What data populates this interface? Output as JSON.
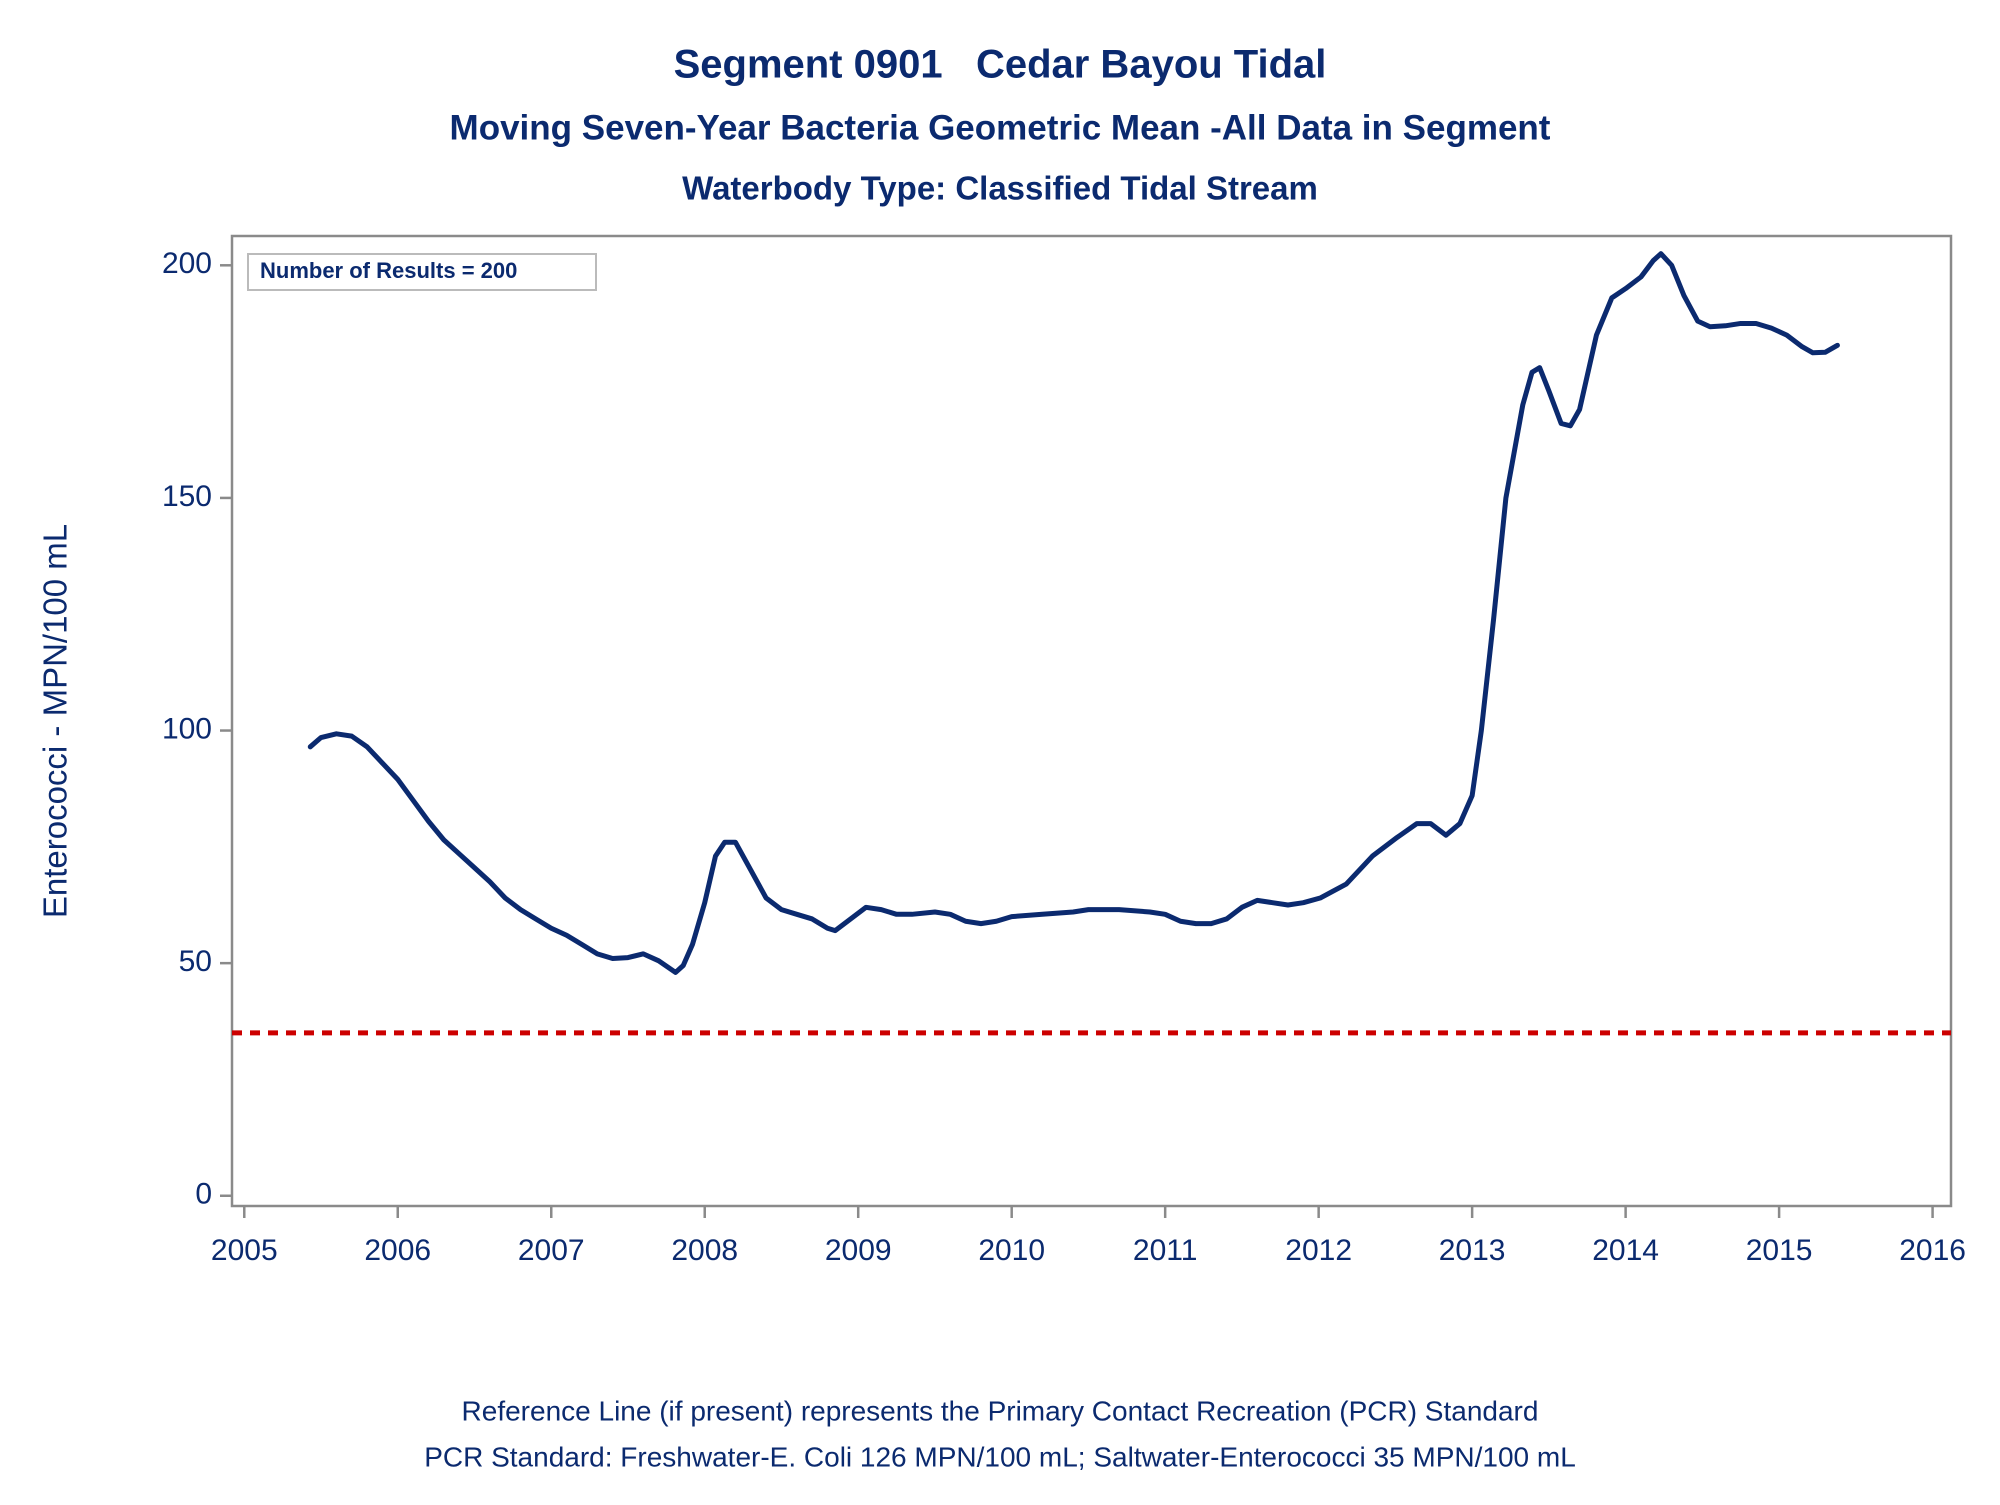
{
  "chart_data": {
    "type": "line",
    "title": "Segment 0901   Cedar Bayou Tidal",
    "subtitle": "Moving Seven-Year Bacteria Geometric Mean -All Data in Segment",
    "subtitle2": "Waterbody Type: Classified Tidal Stream",
    "y_label": "Enterococci - MPN/100 mL",
    "annotation": "Number of Results = 200",
    "notes": [
      "Reference Line (if present) represents the Primary Contact Recreation (PCR) Standard",
      "PCR Standard: Freshwater-E. Coli 126 MPN/100 mL; Saltwater-Enterococci 35 MPN/100 mL"
    ],
    "color": "#0b2a6f",
    "reference_line": {
      "value": 35,
      "color": "#cc0000"
    },
    "xlim": [
      2004.92,
      2016.12
    ],
    "ylim": [
      -2.2,
      206.3
    ],
    "xticks": [
      2005,
      2006,
      2007,
      2008,
      2009,
      2010,
      2011,
      2012,
      2013,
      2014,
      2015,
      2016
    ],
    "yticks": [
      0,
      50,
      100,
      150,
      200
    ],
    "x": [
      2005.43,
      2005.5,
      2005.6,
      2005.7,
      2005.8,
      2005.9,
      2006.0,
      2006.1,
      2006.2,
      2006.3,
      2006.4,
      2006.5,
      2006.6,
      2006.7,
      2006.8,
      2006.9,
      2007.0,
      2007.1,
      2007.2,
      2007.3,
      2007.4,
      2007.5,
      2007.6,
      2007.7,
      2007.81,
      2007.86,
      2007.92,
      2008.0,
      2008.07,
      2008.13,
      2008.2,
      2008.3,
      2008.4,
      2008.5,
      2008.6,
      2008.7,
      2008.8,
      2008.85,
      2008.95,
      2009.05,
      2009.15,
      2009.25,
      2009.35,
      2009.5,
      2009.6,
      2009.7,
      2009.8,
      2009.9,
      2010.0,
      2010.2,
      2010.4,
      2010.5,
      2010.7,
      2010.9,
      2011.0,
      2011.1,
      2011.2,
      2011.3,
      2011.4,
      2011.5,
      2011.6,
      2011.7,
      2011.8,
      2011.9,
      2012.01,
      2012.18,
      2012.35,
      2012.51,
      2012.64,
      2012.73,
      2012.83,
      2012.92,
      2013.0,
      2013.06,
      2013.14,
      2013.22,
      2013.33,
      2013.39,
      2013.44,
      2013.5,
      2013.58,
      2013.64,
      2013.7,
      2013.81,
      2013.91,
      2014.0,
      2014.1,
      2014.18,
      2014.23,
      2014.3,
      2014.38,
      2014.47,
      2014.55,
      2014.65,
      2014.75,
      2014.85,
      2014.95,
      2015.05,
      2015.15,
      2015.22,
      2015.3,
      2015.38
    ],
    "values": [
      96.5,
      98.5,
      99.3,
      98.8,
      96.5,
      93,
      89.5,
      85,
      80.5,
      76.5,
      73.5,
      70.5,
      67.5,
      64,
      61.5,
      59.5,
      57.5,
      56,
      54,
      52,
      51,
      51.2,
      52,
      50.5,
      48,
      49.5,
      54,
      63,
      73,
      76,
      76,
      70,
      64,
      61.5,
      60.5,
      59.5,
      57.5,
      57,
      59.5,
      62,
      61.5,
      60.5,
      60.5,
      61,
      60.5,
      59,
      58.5,
      59,
      60,
      60.5,
      61,
      61.5,
      61.5,
      61,
      60.5,
      59,
      58.5,
      58.5,
      59.5,
      62,
      63.5,
      63,
      62.5,
      63,
      64,
      67,
      73,
      77,
      80,
      80,
      77.5,
      80,
      86,
      100,
      124,
      150,
      170,
      177,
      178,
      173,
      166,
      165.5,
      169,
      185,
      193,
      195,
      197.5,
      201,
      202.5,
      200,
      193.5,
      188,
      186.8,
      187,
      187.5,
      187.5,
      186.5,
      185,
      182.5,
      181.2,
      181.3,
      182.8
    ]
  }
}
